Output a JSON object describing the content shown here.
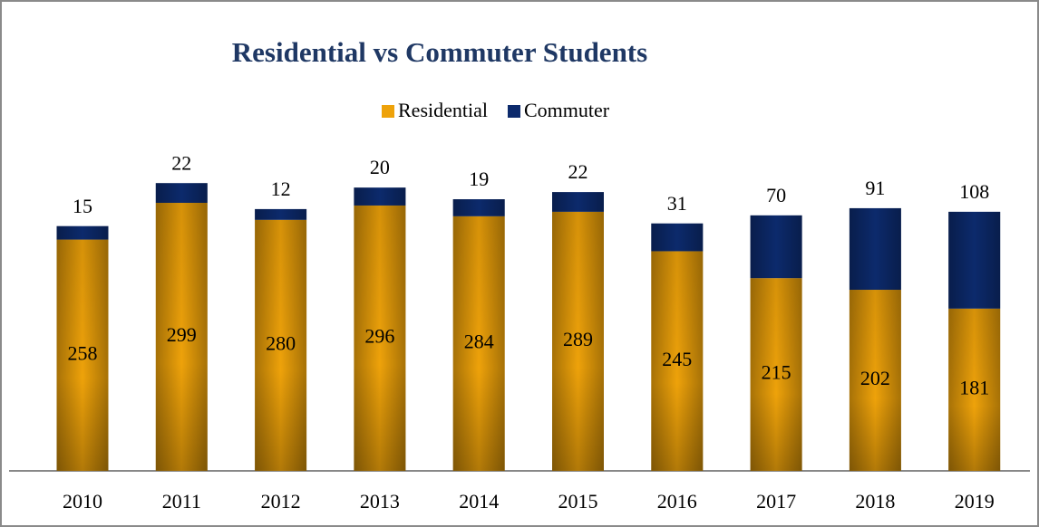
{
  "chart_data": {
    "type": "stacked-bar",
    "title": "Residential vs Commuter Students",
    "categories": [
      "2010",
      "2011",
      "2012",
      "2013",
      "2014",
      "2015",
      "2016",
      "2017",
      "2018",
      "2019"
    ],
    "series": [
      {
        "name": "Residential",
        "color": "#eea20a",
        "values": [
          258,
          299,
          280,
          296,
          284,
          289,
          245,
          215,
          202,
          181
        ]
      },
      {
        "name": "Commuter",
        "color": "#0c2a6c",
        "values": [
          15,
          22,
          12,
          20,
          19,
          22,
          31,
          70,
          91,
          108
        ]
      }
    ],
    "legend": "top"
  }
}
